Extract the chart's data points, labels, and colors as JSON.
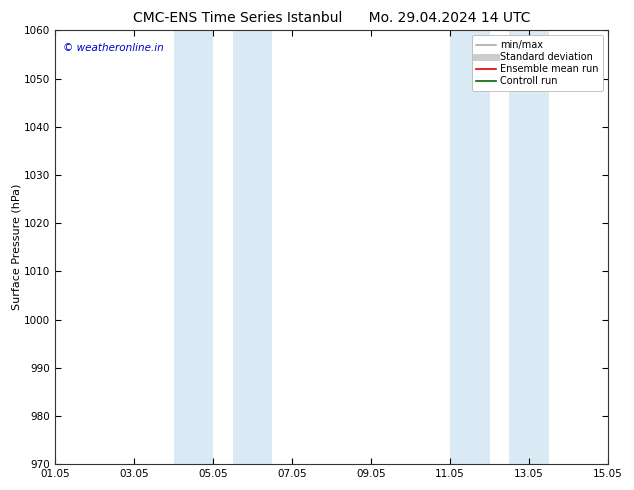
{
  "title_left": "CMC-ENS Time Series Istanbul",
  "title_right": "Mo. 29.04.2024 14 UTC",
  "ylabel": "Surface Pressure (hPa)",
  "ylim": [
    970,
    1060
  ],
  "yticks": [
    970,
    980,
    990,
    1000,
    1010,
    1020,
    1030,
    1040,
    1050,
    1060
  ],
  "xlim_start": 0,
  "xlim_end": 14,
  "xtick_positions": [
    0,
    2,
    4,
    6,
    8,
    10,
    12,
    14
  ],
  "xtick_labels": [
    "01.05",
    "03.05",
    "05.05",
    "07.05",
    "09.05",
    "11.05",
    "13.05",
    "15.05"
  ],
  "shade_bands": [
    {
      "x_start": 3.0,
      "x_end": 4.0
    },
    {
      "x_start": 4.5,
      "x_end": 5.5
    },
    {
      "x_start": 10.0,
      "x_end": 11.0
    },
    {
      "x_start": 11.5,
      "x_end": 12.5
    }
  ],
  "shade_color": "#daeaf5",
  "watermark_text": "© weatheronline.in",
  "watermark_color": "#0000cc",
  "watermark_fontsize": 7.5,
  "legend_entries": [
    {
      "label": "min/max",
      "color": "#aaaaaa",
      "linewidth": 1.2,
      "linestyle": "-",
      "type": "line"
    },
    {
      "label": "Standard deviation",
      "color": "#cccccc",
      "linewidth": 5,
      "linestyle": "-",
      "type": "line"
    },
    {
      "label": "Ensemble mean run",
      "color": "#dd0000",
      "linewidth": 1.2,
      "linestyle": "-",
      "type": "line"
    },
    {
      "label": "Controll run",
      "color": "#006600",
      "linewidth": 1.2,
      "linestyle": "-",
      "type": "line"
    }
  ],
  "title_fontsize": 10,
  "ylabel_fontsize": 8,
  "tick_fontsize": 7.5,
  "legend_fontsize": 7,
  "bg_color": "#ffffff",
  "axes_bg_color": "#ffffff",
  "spine_color": "#333333",
  "figsize": [
    6.34,
    4.9
  ],
  "dpi": 100
}
